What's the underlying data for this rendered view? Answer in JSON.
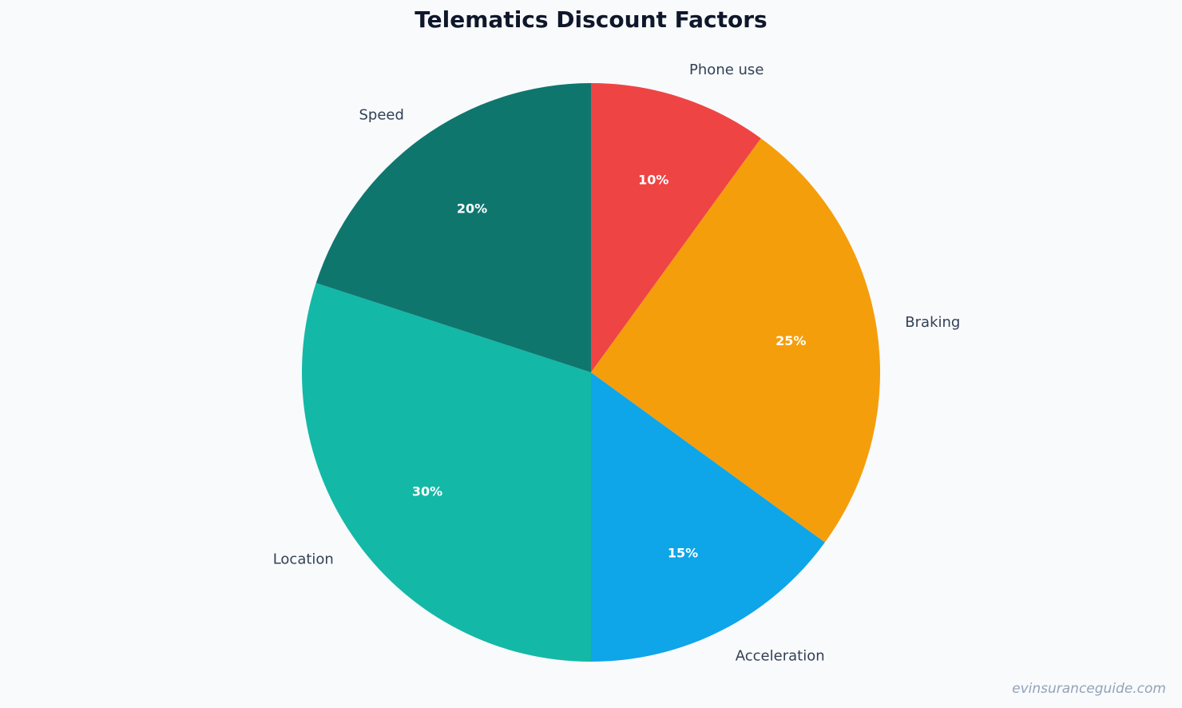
{
  "chart_data": {
    "type": "pie",
    "title": "Telematics Discount Factors",
    "start_angle_deg": 90,
    "direction": "clockwise",
    "slices": [
      {
        "label": "Phone use",
        "value": 10,
        "pct_label": "10%",
        "color": "#ef4444"
      },
      {
        "label": "Braking",
        "value": 25,
        "pct_label": "25%",
        "color": "#f59e0b"
      },
      {
        "label": "Acceleration",
        "value": 15,
        "pct_label": "15%",
        "color": "#0ea5e9"
      },
      {
        "label": "Location",
        "value": 30,
        "pct_label": "30%",
        "color": "#14b8a6"
      },
      {
        "label": "Speed",
        "value": 20,
        "pct_label": "20%",
        "color": "#0f766e"
      }
    ]
  },
  "watermark": "evinsuranceguide.com"
}
